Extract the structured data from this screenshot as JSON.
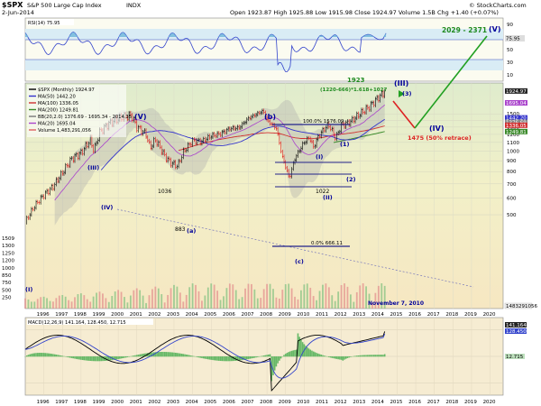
{
  "header": {
    "symbol": "$SPX",
    "name": "S&P 500 Large Cap Index",
    "exchange": "INDX",
    "date": "2-Jun-2014",
    "ohlc": "Open 1923.87  High 1925.88  Low 1915.98  Close 1924.97  Volume 1.5B  Chg +1.40 (+0.07%)",
    "brand": "© StockCharts.com"
  },
  "rsi": {
    "label": "RSI(14) 75.95",
    "ticks": [
      "90",
      "70",
      "50",
      "30",
      "10"
    ],
    "marker": "75.95"
  },
  "main": {
    "legend": [
      {
        "text": "$SPX (Monthly) 1924.97",
        "color": "#000000"
      },
      {
        "text": "MA(50) 1442.20",
        "color": "#3333cc"
      },
      {
        "text": "MA(100) 1336.05",
        "color": "#d03030"
      },
      {
        "text": "MA(200) 1249.81",
        "color": "#3a8a2a"
      },
      {
        "text": "BB(20,2.0) 1376.69 - 1695.34 - 2014.35",
        "color": "#777777"
      },
      {
        "text": "MA(20) 1695.04",
        "color": "#aa44cc"
      },
      {
        "text": "Volume 1,483,291,056",
        "color": "#e06060"
      }
    ],
    "price_ticks": [
      "1500",
      "1400",
      "1300",
      "1200",
      "1100",
      "1000",
      "900",
      "800",
      "700",
      "600",
      "500"
    ],
    "left_ticks": [
      "1509",
      "1300",
      "1250",
      "1200",
      "1000",
      "850",
      "750",
      "500",
      "250"
    ],
    "right_markers": [
      "1924.97",
      "1695.04",
      "1442.20",
      "1376.69",
      "1336.05",
      "1249.81"
    ],
    "volume_marker": "1483291056",
    "wave_labels": [
      "(V)",
      "(III)",
      "(IV)",
      "(a)",
      "(b)",
      "(c)",
      "(I)",
      "(II)",
      "(1)",
      "(2)",
      "(3)",
      "(III)",
      "(IV)",
      "(V)",
      "(I)"
    ],
    "level_labels": [
      "1036",
      "883",
      "1022",
      "100.0%  1576.09",
      "0.0%  666.11"
    ],
    "annotations": {
      "target": "2029 - 2371",
      "target_wave": "(V)",
      "fib_value": "1923",
      "fib_formula": "(1220-666)*1.618+1027",
      "retrace": "1475 (50% retrace)",
      "wave_iv": "(IV)",
      "date_note": "November 7, 2010"
    }
  },
  "macd": {
    "label": "MACD(12,26,9) 141.164, 128.450, 12.715",
    "markers": [
      "141.164",
      "128.450",
      "12.715"
    ]
  },
  "x_axis": {
    "years": [
      "1996",
      "1997",
      "1998",
      "1999",
      "2000",
      "2001",
      "2002",
      "2003",
      "2004",
      "2005",
      "2006",
      "2007",
      "2008",
      "2009",
      "2010",
      "2011",
      "2012",
      "2013",
      "2014",
      "2015",
      "2016",
      "2017",
      "2018",
      "2019",
      "2020"
    ]
  },
  "chart_data": {
    "type": "line",
    "title": "$SPX S&P 500 Large Cap Index",
    "scale": "log",
    "ylim": [
      180,
      2100
    ],
    "x": [
      1995.0,
      1995.5,
      1996.0,
      1996.5,
      1997.0,
      1997.5,
      1998.0,
      1998.5,
      1998.7,
      1999.0,
      1999.5,
      2000.0,
      2000.7,
      2001.0,
      2001.5,
      2001.7,
      2002.0,
      2002.5,
      2002.8,
      2003.2,
      2003.5,
      2004.0,
      2004.5,
      2005.0,
      2005.5,
      2006.0,
      2006.5,
      2007.0,
      2007.8,
      2008.0,
      2008.5,
      2008.8,
      2009.2,
      2009.5,
      2010.0,
      2010.3,
      2010.5,
      2010.8,
      2011.3,
      2011.7,
      2012.0,
      2012.5,
      2013.0,
      2013.5,
      2014.0,
      2014.4
    ],
    "series": [
      {
        "values": [
          460,
          550,
          620,
          680,
          790,
          920,
          980,
          1130,
          1000,
          1230,
          1350,
          1420,
          1480,
          1300,
          1200,
          1036,
          1130,
          950,
          883,
          850,
          990,
          1120,
          1110,
          1180,
          1210,
          1280,
          1290,
          1430,
          1550,
          1400,
          1280,
          950,
          740,
          920,
          1100,
          1160,
          1040,
          1190,
          1340,
          1150,
          1320,
          1380,
          1500,
          1620,
          1800,
          1924.97
        ]
      }
    ],
    "moving_averages": [
      {
        "name": "MA(50)",
        "value": 1442.2
      },
      {
        "name": "MA(100)",
        "value": 1336.05
      },
      {
        "name": "MA(200)",
        "value": 1249.81
      },
      {
        "name": "MA(20)",
        "value": 1695.04
      }
    ],
    "bollinger": {
      "lower": 1376.69,
      "mid": 1695.34,
      "upper": 2014.35
    },
    "projection": {
      "from": [
        2014.4,
        1924.97
      ],
      "retrace": [
        2015.5,
        1475
      ],
      "target_range": [
        2029,
        2371
      ]
    },
    "fib_levels": [
      {
        "label": "100.0%",
        "value": 1576.09
      },
      {
        "label": "0.0%",
        "value": 666.11
      }
    ],
    "legend_position": "top-left",
    "grid": true
  }
}
